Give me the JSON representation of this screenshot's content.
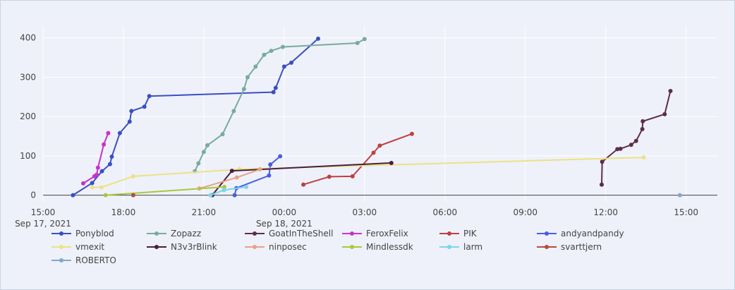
{
  "chart_data": {
    "type": "line",
    "title": "",
    "xlabel": "",
    "ylabel": "",
    "x_axis": {
      "range": [
        "2021-09-17T15:00",
        "2021-09-18T16:10"
      ],
      "ticks": [
        {
          "t": "2021-09-17T15:00",
          "label": "15:00",
          "sublabel": "Sep 17, 2021"
        },
        {
          "t": "2021-09-17T18:00",
          "label": "18:00"
        },
        {
          "t": "2021-09-17T21:00",
          "label": "21:00"
        },
        {
          "t": "2021-09-18T00:00",
          "label": "00:00",
          "sublabel": "Sep 18, 2021"
        },
        {
          "t": "2021-09-18T03:00",
          "label": "03:00"
        },
        {
          "t": "2021-09-18T06:00",
          "label": "06:00"
        },
        {
          "t": "2021-09-18T09:00",
          "label": "09:00"
        },
        {
          "t": "2021-09-18T12:00",
          "label": "12:00"
        },
        {
          "t": "2021-09-18T15:00",
          "label": "15:00"
        }
      ]
    },
    "y_axis": {
      "range": [
        -15,
        430
      ],
      "ticks": [
        0,
        100,
        200,
        300,
        400
      ]
    },
    "grid": true,
    "legend_position": "bottom",
    "series": [
      {
        "name": "Ponyblod",
        "color": "#3a4fc4",
        "points": [
          [
            "2021-09-17T16:07",
            0
          ],
          [
            "2021-09-17T16:50",
            31
          ],
          [
            "2021-09-17T17:12",
            61
          ],
          [
            "2021-09-17T17:30",
            79
          ],
          [
            "2021-09-17T17:34",
            98
          ],
          [
            "2021-09-17T17:52",
            158
          ],
          [
            "2021-09-17T18:14",
            187
          ],
          [
            "2021-09-17T18:18",
            214
          ],
          [
            "2021-09-17T18:47",
            225
          ],
          [
            "2021-09-17T18:58",
            252
          ],
          [
            "2021-09-17T23:36",
            262
          ],
          [
            "2021-09-17T23:41",
            273
          ],
          [
            "2021-09-18T00:00",
            327
          ],
          [
            "2021-09-18T00:16",
            337
          ],
          [
            "2021-09-18T01:16",
            398
          ]
        ]
      },
      {
        "name": "Zopazz",
        "color": "#78ab9f",
        "points": [
          [
            "2021-09-17T20:40",
            61
          ],
          [
            "2021-09-17T20:48",
            81
          ],
          [
            "2021-09-17T21:00",
            110
          ],
          [
            "2021-09-17T21:08",
            127
          ],
          [
            "2021-09-17T21:42",
            155
          ],
          [
            "2021-09-17T22:07",
            214
          ],
          [
            "2021-09-17T22:30",
            270
          ],
          [
            "2021-09-17T22:38",
            300
          ],
          [
            "2021-09-17T22:56",
            327
          ],
          [
            "2021-09-17T23:15",
            357
          ],
          [
            "2021-09-17T23:31",
            367
          ],
          [
            "2021-09-17T23:57",
            377
          ],
          [
            "2021-09-18T02:44",
            387
          ],
          [
            "2021-09-18T03:00",
            397
          ]
        ]
      },
      {
        "name": "GoatInTheShell",
        "color": "#5c2e4c",
        "points": [
          [
            "2021-09-18T11:51",
            27
          ],
          [
            "2021-09-18T11:52",
            85
          ],
          [
            "2021-09-18T12:26",
            117
          ],
          [
            "2021-09-18T12:33",
            118
          ],
          [
            "2021-09-18T12:57",
            128
          ],
          [
            "2021-09-18T13:08",
            138
          ],
          [
            "2021-09-18T13:22",
            168
          ],
          [
            "2021-09-18T13:23",
            188
          ],
          [
            "2021-09-18T14:12",
            206
          ],
          [
            "2021-09-18T14:25",
            265
          ]
        ]
      },
      {
        "name": "FeroxFelix",
        "color": "#c832c8",
        "points": [
          [
            "2021-09-17T16:30",
            30
          ],
          [
            "2021-09-17T16:55",
            48
          ],
          [
            "2021-09-17T17:00",
            52
          ],
          [
            "2021-09-17T17:03",
            70
          ],
          [
            "2021-09-17T17:16",
            129
          ],
          [
            "2021-09-17T17:26",
            158
          ]
        ]
      },
      {
        "name": "PIK",
        "color": "#bf4040",
        "points": [
          [
            "2021-09-18T00:43",
            27
          ],
          [
            "2021-09-18T01:41",
            47
          ],
          [
            "2021-09-18T02:33",
            48
          ],
          [
            "2021-09-18T03:20",
            108
          ],
          [
            "2021-09-18T03:34",
            126
          ],
          [
            "2021-09-18T04:46",
            156
          ]
        ]
      },
      {
        "name": "andyandpandy",
        "color": "#4a5de0",
        "points": [
          [
            "2021-09-17T22:09",
            0
          ],
          [
            "2021-09-17T22:13",
            18
          ],
          [
            "2021-09-17T23:26",
            50
          ],
          [
            "2021-09-17T23:29",
            78
          ],
          [
            "2021-09-17T23:51",
            99
          ]
        ]
      },
      {
        "name": "vmexit",
        "color": "#ece283",
        "points": [
          [
            "2021-09-17T16:50",
            20
          ],
          [
            "2021-09-17T17:11",
            20
          ],
          [
            "2021-09-17T18:22",
            48
          ],
          [
            "2021-09-17T22:20",
            66
          ],
          [
            "2021-09-18T13:25",
            96
          ]
        ]
      },
      {
        "name": "N3v3rBlink",
        "color": "#4a1d3f",
        "points": [
          [
            "2021-09-17T21:19",
            0
          ],
          [
            "2021-09-17T22:03",
            62
          ],
          [
            "2021-09-18T04:00",
            82
          ]
        ]
      },
      {
        "name": "ninposec",
        "color": "#e8a287",
        "points": [
          [
            "2021-09-17T20:50",
            17
          ],
          [
            "2021-09-17T22:14",
            45
          ],
          [
            "2021-09-17T23:06",
            66
          ]
        ]
      },
      {
        "name": "Mindlessdk",
        "color": "#a9c93c",
        "points": [
          [
            "2021-09-17T17:20",
            0
          ],
          [
            "2021-09-17T21:46",
            21
          ]
        ]
      },
      {
        "name": "larm",
        "color": "#79d6ec",
        "points": [
          [
            "2021-09-17T21:15",
            0
          ],
          [
            "2021-09-17T21:45",
            13
          ],
          [
            "2021-09-17T22:35",
            21
          ]
        ]
      },
      {
        "name": "svarttjern",
        "color": "#b84a3a",
        "points": [
          [
            "2021-09-17T18:22",
            0
          ]
        ]
      },
      {
        "name": "ROBERTO",
        "color": "#7fa9c4",
        "points": [
          [
            "2021-09-18T14:46",
            0
          ]
        ]
      }
    ]
  }
}
